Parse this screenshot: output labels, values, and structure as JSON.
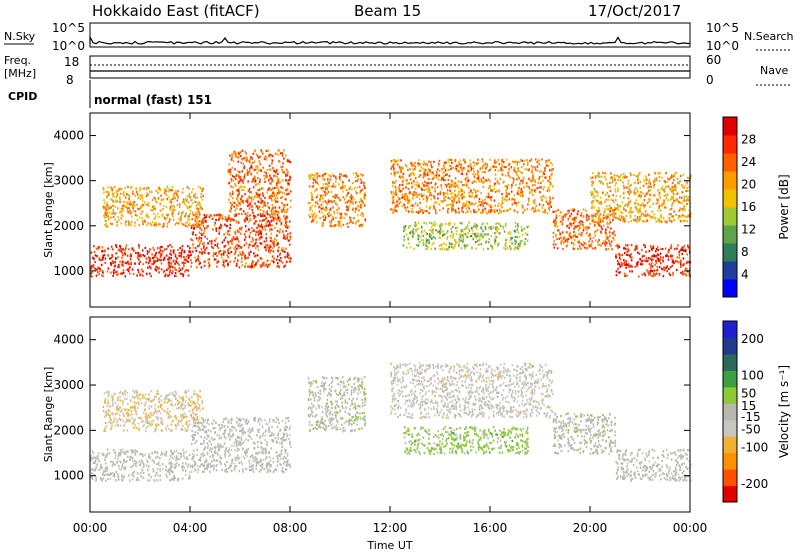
{
  "header": {
    "station": "Hokkaido East (fitACF)",
    "beam": "Beam 15",
    "date": "17/Oct/2017"
  },
  "panels": {
    "nsky_label": "N.Sky",
    "nsearch_label": "N.Search",
    "freq_label": "Freq.",
    "freq_unit": "[MHz]",
    "nave_label": "Nave",
    "cpid_label": "CPID",
    "cpid_value": "normal (fast) 151",
    "nsky_ticks": [
      "10^5",
      "10^0"
    ],
    "nsearch_ticks": [
      "10^5",
      "10^0"
    ],
    "freq_ticks": [
      "18",
      "8"
    ],
    "nave_ticks": [
      "60",
      "0"
    ]
  },
  "colors": {
    "power": [
      "#0000ff",
      "#1e3f9c",
      "#2e7d5c",
      "#5fa44a",
      "#a0c93a",
      "#f2c200",
      "#ff9a00",
      "#ff6000",
      "#ff2800",
      "#e00000"
    ],
    "velocity": [
      "#e00000",
      "#ff5000",
      "#ff9000",
      "#f0b030",
      "#c8c8c0",
      "#b8b8b0",
      "#8cc838",
      "#3aa040",
      "#2a6a58",
      "#203a90",
      "#2020d0"
    ]
  },
  "chart_data": [
    {
      "type": "heatmap",
      "name": "power",
      "ylabel": "Slant Range [km]",
      "xlabel": "Time UT",
      "x_ticks": [
        "00:00",
        "04:00",
        "08:00",
        "12:00",
        "16:00",
        "20:00",
        "00:00"
      ],
      "y_ticks": [
        1000,
        2000,
        3000,
        4000
      ],
      "ylim": [
        200,
        4500
      ],
      "colorbar": {
        "label": "Power [dB]",
        "ticks": [
          4,
          8,
          12,
          16,
          20,
          24,
          28
        ],
        "range": [
          0,
          32
        ]
      },
      "echo_bands": [
        {
          "start_ut": 0.0,
          "end_ut": 4.0,
          "range_min_km": 900,
          "range_max_km": 1600,
          "power_db": 28
        },
        {
          "start_ut": 4.0,
          "end_ut": 8.0,
          "range_min_km": 1100,
          "range_max_km": 2300,
          "power_db": 26
        },
        {
          "start_ut": 5.5,
          "end_ut": 8.0,
          "range_min_km": 2300,
          "range_max_km": 3700,
          "power_db": 24
        },
        {
          "start_ut": 0.5,
          "end_ut": 4.5,
          "range_min_km": 2000,
          "range_max_km": 2900,
          "power_db": 20
        },
        {
          "start_ut": 8.7,
          "end_ut": 11.0,
          "range_min_km": 2000,
          "range_max_km": 3200,
          "power_db": 22
        },
        {
          "start_ut": 12.0,
          "end_ut": 18.5,
          "range_min_km": 2300,
          "range_max_km": 3500,
          "power_db": 22
        },
        {
          "start_ut": 12.5,
          "end_ut": 17.5,
          "range_min_km": 1500,
          "range_max_km": 2100,
          "power_db": 14
        },
        {
          "start_ut": 18.5,
          "end_ut": 21.0,
          "range_min_km": 1500,
          "range_max_km": 2400,
          "power_db": 24
        },
        {
          "start_ut": 21.0,
          "end_ut": 24.0,
          "range_min_km": 900,
          "range_max_km": 1600,
          "power_db": 28
        },
        {
          "start_ut": 20.0,
          "end_ut": 24.0,
          "range_min_km": 2100,
          "range_max_km": 3200,
          "power_db": 20
        }
      ]
    },
    {
      "type": "heatmap",
      "name": "velocity",
      "ylabel": "Slant Range [km]",
      "xlabel": "Time UT",
      "x_ticks": [
        "00:00",
        "04:00",
        "08:00",
        "12:00",
        "16:00",
        "20:00",
        "00:00"
      ],
      "y_ticks": [
        1000,
        2000,
        3000,
        4000
      ],
      "ylim": [
        200,
        4500
      ],
      "colorbar": {
        "label": "Velocity [m s⁻¹]",
        "ticks": [
          200,
          100,
          50,
          15,
          -15,
          -50,
          -100,
          -200
        ],
        "range": [
          -250,
          250
        ]
      },
      "echo_bands": [
        {
          "start_ut": 0.0,
          "end_ut": 4.0,
          "range_min_km": 900,
          "range_max_km": 1600,
          "velocity_ms": -10
        },
        {
          "start_ut": 4.0,
          "end_ut": 8.0,
          "range_min_km": 1100,
          "range_max_km": 2300,
          "velocity_ms": -10
        },
        {
          "start_ut": 0.5,
          "end_ut": 4.5,
          "range_min_km": 2000,
          "range_max_km": 2900,
          "velocity_ms": -60
        },
        {
          "start_ut": 8.7,
          "end_ut": 11.0,
          "range_min_km": 2000,
          "range_max_km": 3200,
          "velocity_ms": 0
        },
        {
          "start_ut": 12.0,
          "end_ut": 18.5,
          "range_min_km": 2300,
          "range_max_km": 3500,
          "velocity_ms": -40
        },
        {
          "start_ut": 12.5,
          "end_ut": 17.5,
          "range_min_km": 1500,
          "range_max_km": 2100,
          "velocity_ms": 40
        },
        {
          "start_ut": 18.5,
          "end_ut": 21.0,
          "range_min_km": 1500,
          "range_max_km": 2400,
          "velocity_ms": 0
        },
        {
          "start_ut": 21.0,
          "end_ut": 24.0,
          "range_min_km": 900,
          "range_max_km": 1600,
          "velocity_ms": -10
        }
      ]
    }
  ]
}
